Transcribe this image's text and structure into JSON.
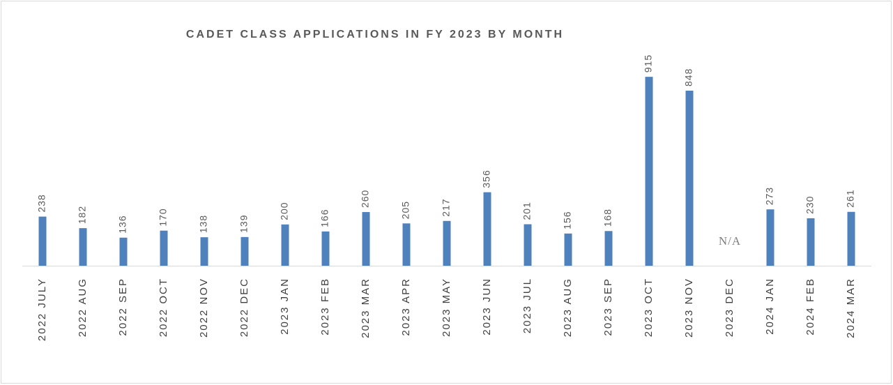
{
  "chart_data": {
    "type": "bar",
    "title": "CADET CLASS APPLICATIONS IN FY 2023 BY MONTH",
    "categories": [
      "2022 JULY",
      "2022 AUG",
      "2022 SEP",
      "2022 OCT",
      "2022 NOV",
      "2022 DEC",
      "2023 JAN",
      "2023 FEB",
      "2023 MAR",
      "2023 APR",
      "2023 MAY",
      "2023 JUN",
      "2023 JUL",
      "2023 AUG",
      "2023 SEP",
      "2023 OCT",
      "2023 NOV",
      "2023 DEC",
      "2024 JAN",
      "2024 FEB",
      "2024 MAR"
    ],
    "values": [
      238,
      182,
      136,
      170,
      138,
      139,
      200,
      166,
      260,
      205,
      217,
      356,
      201,
      156,
      168,
      915,
      848,
      null,
      273,
      230,
      261
    ],
    "value_labels": [
      "238",
      "182",
      "136",
      "170",
      "138",
      "139",
      "200",
      "166",
      "260",
      "205",
      "217",
      "356",
      "201",
      "156",
      "168",
      "915",
      "848",
      "N/A",
      "273",
      "230",
      "261"
    ],
    "color": "#4f81bd",
    "ylim": [
      0,
      1000
    ]
  }
}
